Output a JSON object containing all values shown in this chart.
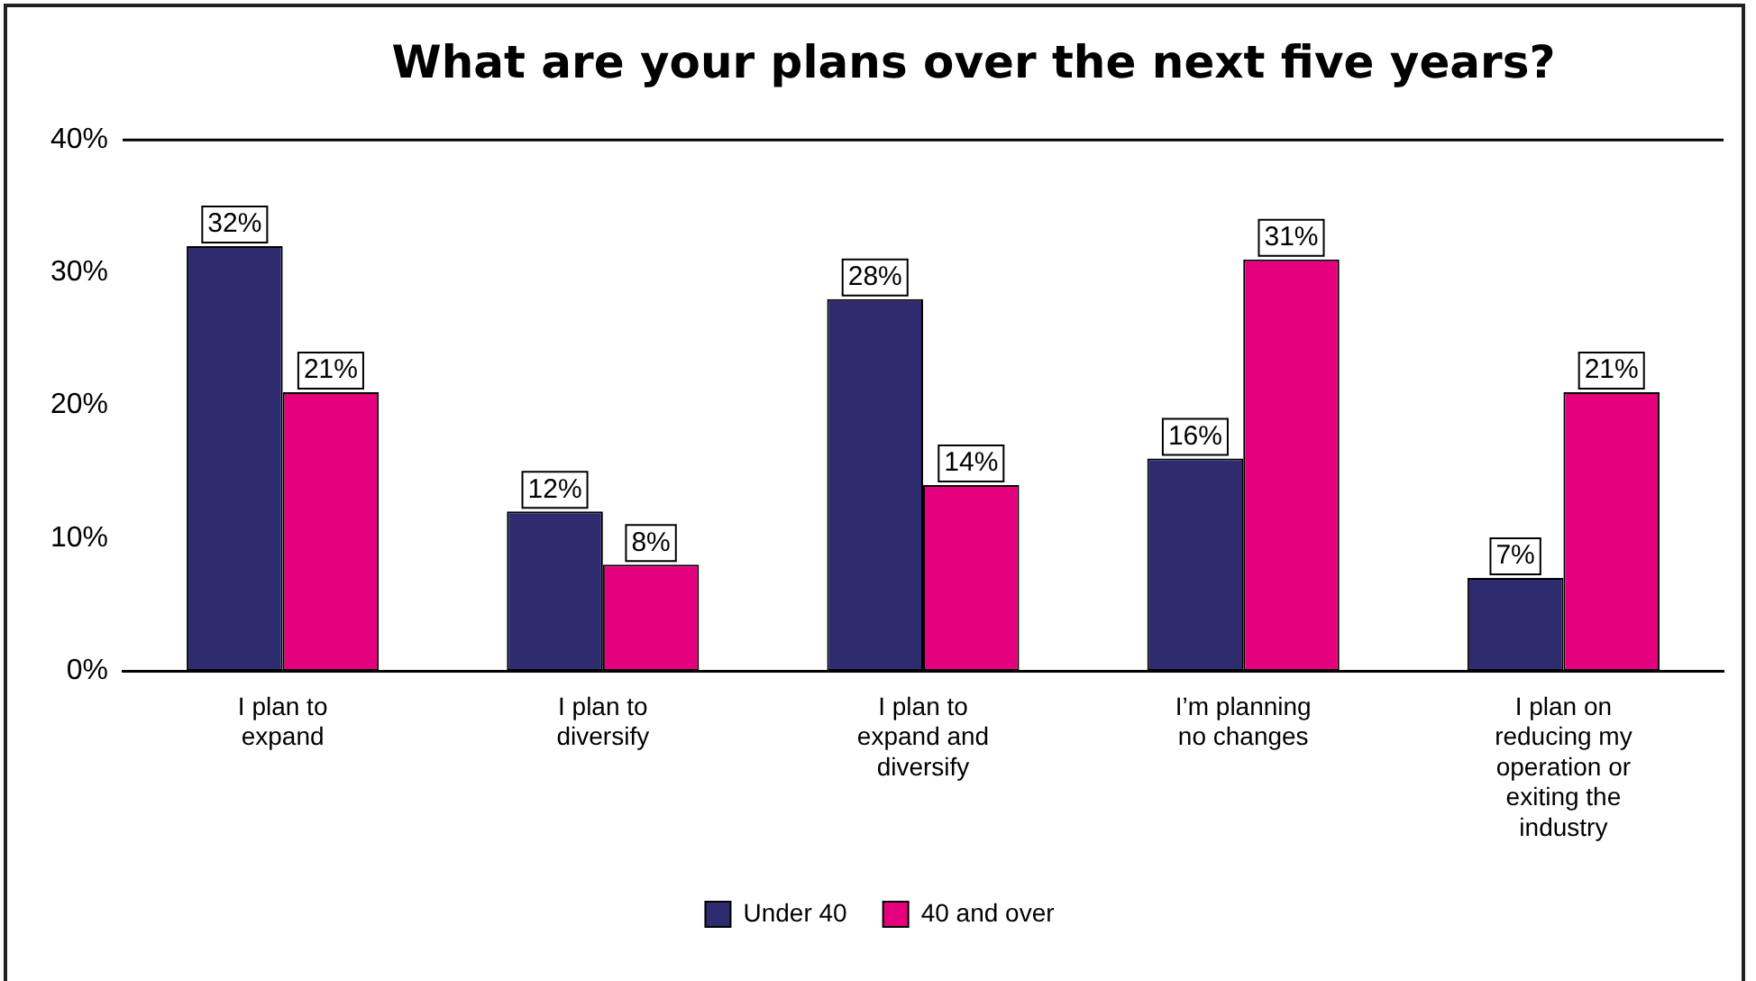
{
  "chart_data": {
    "type": "bar",
    "title": "What are your plans over the next five years?",
    "categories": [
      "I plan to expand",
      "I plan to diversify",
      "I plan to expand and diversify",
      "I’m planning no changes",
      "I plan on reducing my operation or exiting the industry"
    ],
    "series": [
      {
        "name": "Under 40",
        "color": "#2e2c6e",
        "values": [
          32,
          12,
          28,
          16,
          7
        ],
        "value_labels": [
          "32%",
          "12%",
          "28%",
          "16%",
          "7%"
        ]
      },
      {
        "name": "40 and over",
        "color": "#e5007d",
        "values": [
          21,
          8,
          14,
          31,
          21
        ],
        "value_labels": [
          "21%",
          "8%",
          "14%",
          "31%",
          "21%"
        ]
      }
    ],
    "ylim": [
      0,
      40
    ],
    "yticks": [
      {
        "value": 0,
        "label": "0%"
      },
      {
        "value": 10,
        "label": "10%"
      },
      {
        "value": 20,
        "label": "20%"
      },
      {
        "value": 30,
        "label": "30%"
      },
      {
        "value": 40,
        "label": "40%"
      }
    ],
    "grid": false,
    "legend": "bottom"
  }
}
